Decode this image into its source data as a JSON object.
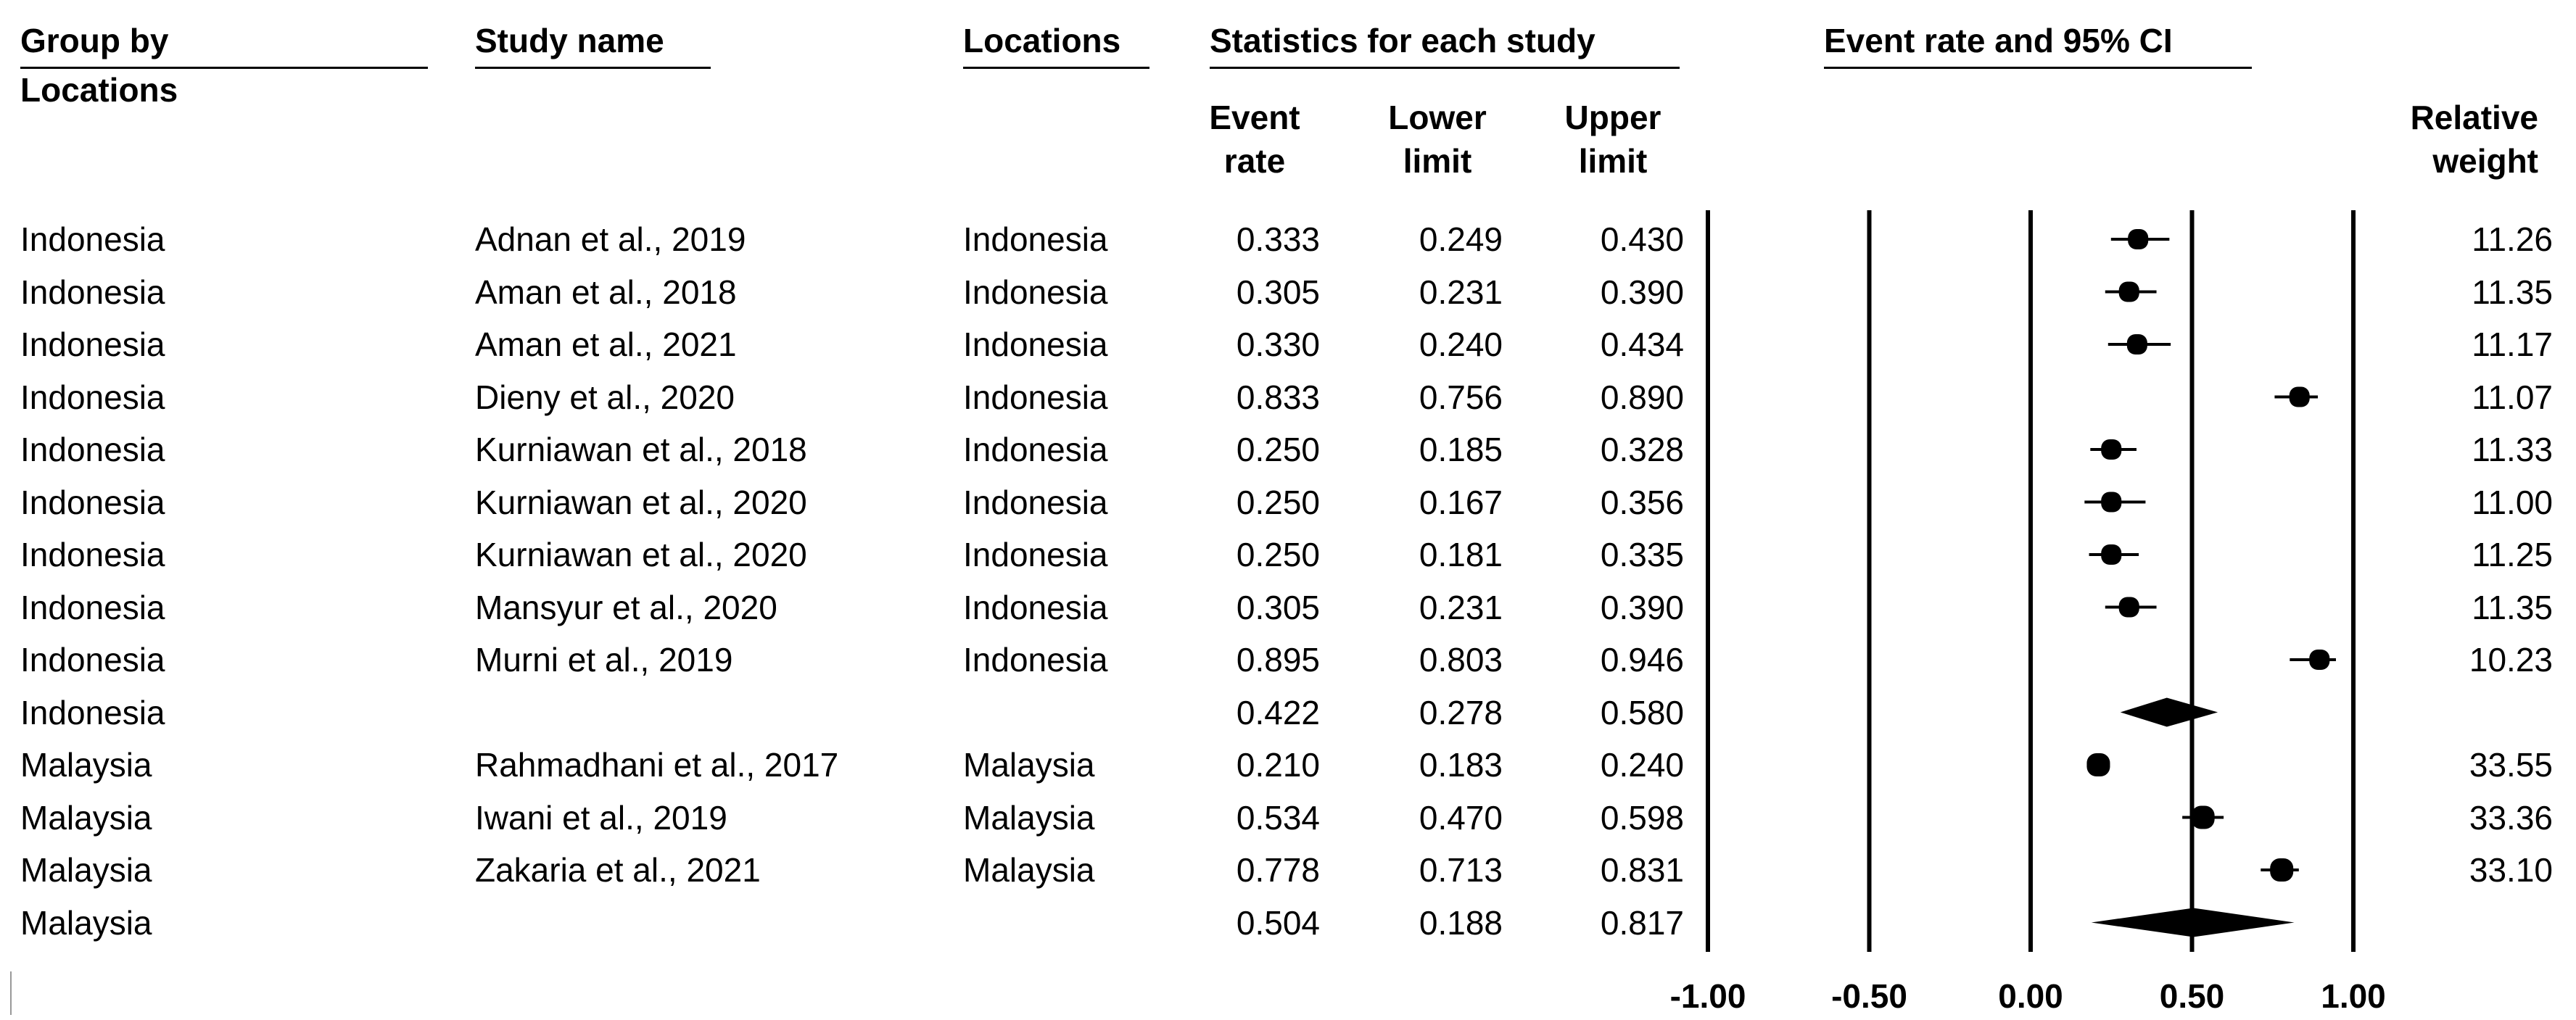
{
  "headers": {
    "group_by": "Group by",
    "group_by_sub": "Locations",
    "study_name": "Study name",
    "locations": "Locations",
    "statistics": "Statistics for each study",
    "plot_title": "Event rate and 95% CI",
    "event_rate": [
      "Event",
      "rate"
    ],
    "lower_limit": [
      "Lower",
      "limit"
    ],
    "upper_limit": [
      "Upper",
      "limit"
    ],
    "relative_weight": [
      "Relative",
      "weight"
    ]
  },
  "colors": {
    "ink": "#000000",
    "background": "#ffffff"
  },
  "chart_data": {
    "type": "forest",
    "title": "Event rate and 95% CI",
    "xlim": [
      -1.0,
      1.0
    ],
    "x_ticks": [
      "-1.00",
      "-0.50",
      "0.00",
      "0.50",
      "1.00"
    ],
    "x_tick_values": [
      -1.0,
      -0.5,
      0.0,
      0.5,
      1.0
    ],
    "reference_lines": [
      -1.0,
      -0.5,
      0.0,
      0.5,
      1.0
    ],
    "rows": [
      {
        "group": "Indonesia",
        "study": "Adnan et al., 2019",
        "location": "Indonesia",
        "event_rate": "0.333",
        "lower": "0.249",
        "upper": "0.430",
        "weight": "11.26",
        "kind": "study"
      },
      {
        "group": "Indonesia",
        "study": "Aman et al., 2018",
        "location": "Indonesia",
        "event_rate": "0.305",
        "lower": "0.231",
        "upper": "0.390",
        "weight": "11.35",
        "kind": "study"
      },
      {
        "group": "Indonesia",
        "study": "Aman et al., 2021",
        "location": "Indonesia",
        "event_rate": "0.330",
        "lower": "0.240",
        "upper": "0.434",
        "weight": "11.17",
        "kind": "study"
      },
      {
        "group": "Indonesia",
        "study": "Dieny et al., 2020",
        "location": "Indonesia",
        "event_rate": "0.833",
        "lower": "0.756",
        "upper": "0.890",
        "weight": "11.07",
        "kind": "study"
      },
      {
        "group": "Indonesia",
        "study": "Kurniawan et al., 2018",
        "location": "Indonesia",
        "event_rate": "0.250",
        "lower": "0.185",
        "upper": "0.328",
        "weight": "11.33",
        "kind": "study"
      },
      {
        "group": "Indonesia",
        "study": "Kurniawan et al., 2020",
        "location": "Indonesia",
        "event_rate": "0.250",
        "lower": "0.167",
        "upper": "0.356",
        "weight": "11.00",
        "kind": "study"
      },
      {
        "group": "Indonesia",
        "study": "Kurniawan et al., 2020",
        "location": "Indonesia",
        "event_rate": "0.250",
        "lower": "0.181",
        "upper": "0.335",
        "weight": "11.25",
        "kind": "study"
      },
      {
        "group": "Indonesia",
        "study": "Mansyur et al., 2020",
        "location": "Indonesia",
        "event_rate": "0.305",
        "lower": "0.231",
        "upper": "0.390",
        "weight": "11.35",
        "kind": "study"
      },
      {
        "group": "Indonesia",
        "study": "Murni et al., 2019",
        "location": "Indonesia",
        "event_rate": "0.895",
        "lower": "0.803",
        "upper": "0.946",
        "weight": "10.23",
        "kind": "study"
      },
      {
        "group": "Indonesia",
        "study": "",
        "location": "",
        "event_rate": "0.422",
        "lower": "0.278",
        "upper": "0.580",
        "weight": "",
        "kind": "summary"
      },
      {
        "group": "Malaysia",
        "study": "Rahmadhani et al., 2017",
        "location": "Malaysia",
        "event_rate": "0.210",
        "lower": "0.183",
        "upper": "0.240",
        "weight": "33.55",
        "kind": "study"
      },
      {
        "group": "Malaysia",
        "study": "Iwani et al., 2019",
        "location": "Malaysia",
        "event_rate": "0.534",
        "lower": "0.470",
        "upper": "0.598",
        "weight": "33.36",
        "kind": "study"
      },
      {
        "group": "Malaysia",
        "study": "Zakaria et al., 2021",
        "location": "Malaysia",
        "event_rate": "0.778",
        "lower": "0.713",
        "upper": "0.831",
        "weight": "33.10",
        "kind": "study"
      },
      {
        "group": "Malaysia",
        "study": "",
        "location": "",
        "event_rate": "0.504",
        "lower": "0.188",
        "upper": "0.817",
        "weight": "",
        "kind": "summary"
      }
    ]
  }
}
